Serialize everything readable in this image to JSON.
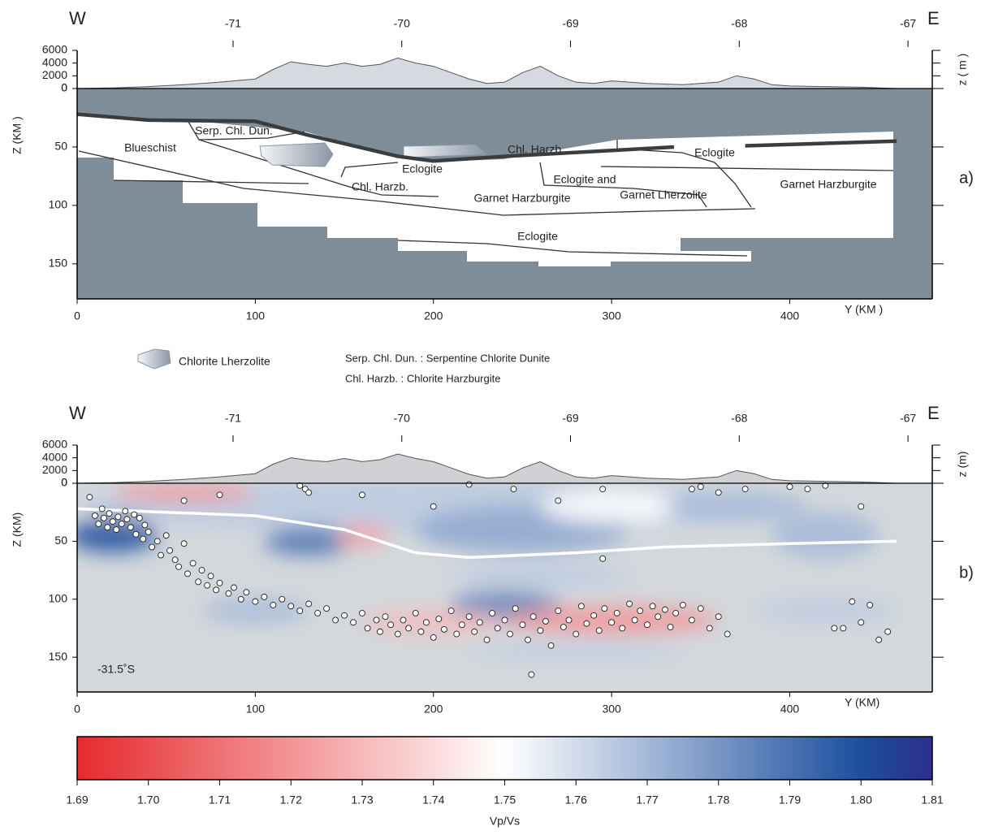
{
  "chart_data": [
    {
      "type": "cross_section",
      "panel_label": "a)",
      "west": "W",
      "east": "E",
      "xlabel": "Y (KM  )",
      "ylabel": "Z (KM  )",
      "topo_label": "z ( m )",
      "xlim": [
        0,
        480
      ],
      "xticks": [
        0,
        100,
        200,
        300,
        400
      ],
      "ylim": [
        0,
        180
      ],
      "yticks": [
        0,
        50,
        100,
        150
      ],
      "lonlim": [
        -71.924,
        -66.856
      ],
      "lonticks": [
        -71,
        -70,
        -69,
        -68,
        -67
      ],
      "topolim": [
        0,
        6000
      ],
      "topoticks": [
        0,
        2000,
        4000,
        6000
      ],
      "topography": {
        "x": [
          0,
          20,
          40,
          60,
          80,
          100,
          110,
          120,
          130,
          140,
          150,
          160,
          170,
          180,
          190,
          200,
          210,
          220,
          230,
          240,
          250,
          260,
          270,
          280,
          290,
          300,
          310,
          320,
          340,
          360,
          370,
          380,
          390,
          400,
          420,
          440,
          460
        ],
        "z": [
          0,
          100,
          300,
          600,
          1000,
          1500,
          3000,
          4200,
          3800,
          3500,
          4000,
          3500,
          3800,
          4800,
          4000,
          3500,
          2500,
          1500,
          800,
          1000,
          2500,
          3500,
          2000,
          1000,
          800,
          1200,
          1000,
          800,
          600,
          1000,
          2000,
          1500,
          600,
          400,
          300,
          200,
          0
        ]
      },
      "slab": [
        {
          "x": [
            0,
            40,
            100,
            130,
            180,
            200,
            240,
            300,
            335
          ],
          "z": [
            22,
            27,
            28,
            40,
            58,
            62,
            58,
            53,
            50
          ]
        },
        {
          "x": [
            375,
            460
          ],
          "z": [
            49,
            45
          ]
        }
      ],
      "unit_labels": [
        "Blueschist",
        "Serp. Chl. Dun.",
        "Chl. Harzb.",
        "Eclogite",
        "Eclogite",
        "Chl. Harzb.",
        "Eclogite  and",
        "Garnet Harzburgite",
        "Garnet Lherzolite",
        "Garnet Harzburgite",
        "Eclogite"
      ],
      "legend": [
        "Chlorite Lherzolite",
        "Serp. Chl. Dun. : Serpentine Chlorite Dunite",
        "Chl. Harzb. : Chlorite Harzburgite"
      ],
      "color": "#7f8d98"
    },
    {
      "type": "tomography",
      "panel_label": "b)",
      "west": "W",
      "east": "E",
      "xlabel": "Y (KM)",
      "ylabel": "Z (KM)",
      "topo_label": "z (m)",
      "annotation": "-31.5˚S",
      "xlim": [
        0,
        480
      ],
      "xticks": [
        0,
        100,
        200,
        300,
        400
      ],
      "ylim": [
        0,
        180
      ],
      "yticks": [
        0,
        50,
        100,
        150
      ],
      "lonlim": [
        -71.924,
        -66.856
      ],
      "lonticks": [
        -71,
        -70,
        -69,
        -68,
        -67
      ],
      "topolim": [
        0,
        6000
      ],
      "topoticks": [
        0,
        2000,
        4000,
        6000
      ],
      "topography": {
        "x": [
          0,
          20,
          40,
          60,
          80,
          100,
          110,
          120,
          130,
          140,
          150,
          160,
          170,
          180,
          190,
          200,
          210,
          220,
          230,
          240,
          250,
          260,
          270,
          280,
          290,
          300,
          310,
          320,
          340,
          360,
          370,
          380,
          390,
          400,
          420,
          440,
          460
        ],
        "z": [
          0,
          100,
          300,
          600,
          1000,
          1500,
          3000,
          4000,
          3600,
          3400,
          3900,
          3400,
          3700,
          4600,
          3900,
          3400,
          2400,
          1400,
          800,
          1000,
          2400,
          3400,
          2000,
          1000,
          800,
          1200,
          1000,
          800,
          600,
          1000,
          2000,
          1500,
          600,
          400,
          300,
          200,
          0
        ]
      },
      "slab": [
        {
          "x": [
            0,
            50,
            100,
            150,
            190,
            220,
            280,
            330,
            400,
            460
          ],
          "z": [
            22,
            25,
            28,
            40,
            60,
            64,
            60,
            55,
            52,
            50
          ]
        }
      ],
      "anomalies": [
        [
          200,
          20,
          200,
          22,
          1.765
        ],
        [
          20,
          45,
          25,
          15,
          1.8
        ],
        [
          60,
          8,
          40,
          8,
          1.72
        ],
        [
          130,
          50,
          25,
          12,
          1.79
        ],
        [
          160,
          45,
          15,
          10,
          1.725
        ],
        [
          250,
          40,
          60,
          20,
          1.775
        ],
        [
          300,
          20,
          40,
          15,
          1.75
        ],
        [
          260,
          80,
          50,
          10,
          1.765
        ],
        [
          240,
          105,
          30,
          12,
          1.785
        ],
        [
          300,
          118,
          60,
          12,
          1.72
        ],
        [
          200,
          120,
          40,
          10,
          1.73
        ],
        [
          100,
          110,
          30,
          10,
          1.77
        ],
        [
          420,
          45,
          30,
          20,
          1.77
        ],
        [
          370,
          20,
          40,
          12,
          1.77
        ],
        [
          420,
          110,
          40,
          10,
          1.765
        ],
        [
          280,
          145,
          60,
          6,
          1.765
        ]
      ],
      "events": [
        [
          7,
          12
        ],
        [
          10,
          28
        ],
        [
          12,
          35
        ],
        [
          14,
          22
        ],
        [
          15,
          30
        ],
        [
          17,
          38
        ],
        [
          18,
          26
        ],
        [
          20,
          33
        ],
        [
          22,
          40
        ],
        [
          23,
          29
        ],
        [
          25,
          35
        ],
        [
          27,
          24
        ],
        [
          28,
          31
        ],
        [
          30,
          38
        ],
        [
          32,
          27
        ],
        [
          33,
          44
        ],
        [
          35,
          30
        ],
        [
          37,
          48
        ],
        [
          38,
          36
        ],
        [
          40,
          42
        ],
        [
          42,
          55
        ],
        [
          45,
          50
        ],
        [
          47,
          62
        ],
        [
          50,
          45
        ],
        [
          52,
          58
        ],
        [
          55,
          66
        ],
        [
          57,
          72
        ],
        [
          60,
          52
        ],
        [
          62,
          78
        ],
        [
          65,
          69
        ],
        [
          68,
          85
        ],
        [
          70,
          75
        ],
        [
          73,
          88
        ],
        [
          75,
          80
        ],
        [
          78,
          92
        ],
        [
          80,
          86
        ],
        [
          85,
          95
        ],
        [
          88,
          90
        ],
        [
          92,
          100
        ],
        [
          95,
          94
        ],
        [
          100,
          102
        ],
        [
          105,
          98
        ],
        [
          110,
          105
        ],
        [
          115,
          100
        ],
        [
          120,
          106
        ],
        [
          125,
          110
        ],
        [
          130,
          104
        ],
        [
          135,
          112
        ],
        [
          140,
          108
        ],
        [
          145,
          118
        ],
        [
          150,
          114
        ],
        [
          155,
          120
        ],
        [
          160,
          112
        ],
        [
          163,
          125
        ],
        [
          168,
          118
        ],
        [
          170,
          128
        ],
        [
          173,
          115
        ],
        [
          176,
          122
        ],
        [
          180,
          130
        ],
        [
          183,
          118
        ],
        [
          186,
          125
        ],
        [
          190,
          112
        ],
        [
          193,
          128
        ],
        [
          196,
          120
        ],
        [
          200,
          133
        ],
        [
          203,
          117
        ],
        [
          206,
          126
        ],
        [
          210,
          110
        ],
        [
          213,
          130
        ],
        [
          216,
          122
        ],
        [
          220,
          115
        ],
        [
          223,
          128
        ],
        [
          226,
          120
        ],
        [
          230,
          135
        ],
        [
          233,
          112
        ],
        [
          236,
          125
        ],
        [
          240,
          118
        ],
        [
          243,
          130
        ],
        [
          246,
          108
        ],
        [
          250,
          122
        ],
        [
          253,
          135
        ],
        [
          256,
          115
        ],
        [
          260,
          127
        ],
        [
          263,
          119
        ],
        [
          266,
          140
        ],
        [
          270,
          110
        ],
        [
          273,
          124
        ],
        [
          276,
          118
        ],
        [
          280,
          130
        ],
        [
          283,
          106
        ],
        [
          286,
          121
        ],
        [
          290,
          114
        ],
        [
          293,
          127
        ],
        [
          296,
          108
        ],
        [
          300,
          120
        ],
        [
          303,
          112
        ],
        [
          306,
          125
        ],
        [
          310,
          104
        ],
        [
          313,
          118
        ],
        [
          316,
          110
        ],
        [
          320,
          122
        ],
        [
          323,
          106
        ],
        [
          326,
          115
        ],
        [
          330,
          109
        ],
        [
          333,
          124
        ],
        [
          336,
          112
        ],
        [
          340,
          105
        ],
        [
          345,
          118
        ],
        [
          350,
          108
        ],
        [
          355,
          125
        ],
        [
          360,
          115
        ],
        [
          365,
          130
        ],
        [
          255,
          165
        ],
        [
          60,
          15
        ],
        [
          80,
          10
        ],
        [
          125,
          2
        ],
        [
          128,
          5
        ],
        [
          130,
          8
        ],
        [
          160,
          10
        ],
        [
          200,
          20
        ],
        [
          220,
          1
        ],
        [
          245,
          5
        ],
        [
          270,
          15
        ],
        [
          295,
          5
        ],
        [
          295,
          65
        ],
        [
          345,
          5
        ],
        [
          350,
          3
        ],
        [
          360,
          8
        ],
        [
          375,
          5
        ],
        [
          400,
          3
        ],
        [
          410,
          5
        ],
        [
          420,
          2
        ],
        [
          440,
          20
        ],
        [
          435,
          102
        ],
        [
          445,
          105
        ],
        [
          430,
          125
        ],
        [
          440,
          120
        ],
        [
          450,
          135
        ],
        [
          455,
          128
        ],
        [
          425,
          125
        ]
      ],
      "color": "#d3d8dc"
    },
    {
      "type": "colorbar",
      "xlabel": "Vp/Vs",
      "xlim": [
        1.69,
        1.81
      ],
      "xticks": [
        1.69,
        {
          "value": 1.7,
          "label": "1.70"
        },
        1.71,
        1.72,
        1.73,
        1.74,
        1.75,
        1.76,
        1.77,
        1.78,
        1.79,
        {
          "value": 1.8,
          "label": "1.80"
        },
        1.81
      ],
      "stops": [
        {
          "value": 1.69,
          "color": "#e62a2d"
        },
        {
          "value": 1.75,
          "color": "#ffffff"
        },
        {
          "value": 1.8,
          "color": "#1c4f9e"
        },
        {
          "value": 1.81,
          "color": "#2c2f8c"
        }
      ]
    }
  ]
}
